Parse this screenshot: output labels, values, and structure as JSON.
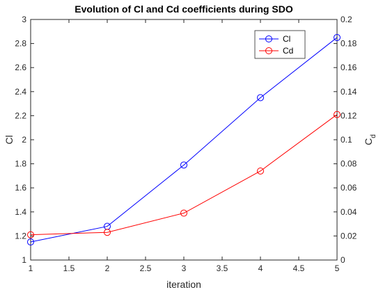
{
  "chart_data": {
    "type": "line",
    "title": "Evolution of Cl and Cd coefficients during SDO",
    "xlabel": "iteration",
    "ylabel_left": "Cl",
    "ylabel_right_main": "C",
    "ylabel_right_sub": "d",
    "xlim": [
      1,
      5
    ],
    "ylim_left": [
      1,
      3
    ],
    "ylim_right": [
      0,
      0.2
    ],
    "x_ticks": [
      "1",
      "1.5",
      "2",
      "2.5",
      "3",
      "3.5",
      "4",
      "4.5",
      "5"
    ],
    "y_left_ticks": [
      "1",
      "1.2",
      "1.4",
      "1.6",
      "1.8",
      "2",
      "2.2",
      "2.4",
      "2.6",
      "2.8",
      "3"
    ],
    "y_right_ticks": [
      "0",
      "0.02",
      "0.04",
      "0.06",
      "0.08",
      "0.1",
      "0.12",
      "0.14",
      "0.16",
      "0.18",
      "0.2"
    ],
    "grid": false,
    "legend_position": "top-right",
    "series": [
      {
        "name": "Cl",
        "axis": "left",
        "color": "#0000ff",
        "marker": "circle",
        "x": [
          1,
          2,
          3,
          4,
          5
        ],
        "values": [
          1.15,
          1.28,
          1.79,
          2.35,
          2.85
        ]
      },
      {
        "name": "Cd",
        "axis": "right",
        "color": "#ff0000",
        "marker": "circle",
        "x": [
          1,
          2,
          3,
          4,
          5
        ],
        "values": [
          0.021,
          0.023,
          0.039,
          0.074,
          0.121
        ]
      }
    ]
  }
}
